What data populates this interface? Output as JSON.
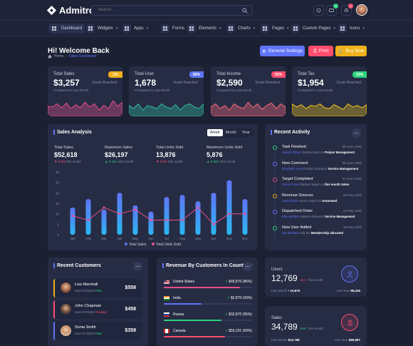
{
  "app": {
    "name": "Admitro"
  },
  "search": {
    "placeholder": "Search..."
  },
  "topbar": {
    "notif_badge": "3",
    "alert_badge": "6"
  },
  "nav": [
    {
      "label": "Dashboard",
      "icon": "dashboard-icon"
    },
    {
      "label": "Widgets",
      "icon": "widgets-icon"
    },
    {
      "label": "Apps",
      "icon": "apps-icon"
    },
    {
      "label": "Forms",
      "icon": "forms-icon"
    },
    {
      "label": "Elements",
      "icon": "elements-icon"
    },
    {
      "label": "Charts",
      "icon": "charts-icon"
    },
    {
      "label": "Pages",
      "icon": "pages-icon"
    },
    {
      "label": "Custom Pages",
      "icon": "custom-pages-icon"
    },
    {
      "label": "Icons",
      "icon": "icons-icon"
    }
  ],
  "page": {
    "title": "Hi! Welcome Back",
    "crumb_home": "Home",
    "crumb_current": "Sales Dashboard"
  },
  "actions": {
    "settings": "General Settings",
    "print": "Print",
    "buy": "Buy Now"
  },
  "stats": [
    {
      "label": "Total Sales",
      "value": "$3,257",
      "compare": "Compared to Last Month",
      "goal": "Goals Reached",
      "pct": "1%",
      "pct_color": "#f0b21a",
      "color": "#e84f8c"
    },
    {
      "label": "Total User",
      "value": "1,678",
      "compare": "Compared to Last Month",
      "goal": "Goals Reached",
      "pct": "85%",
      "pct_color": "#5f74f7",
      "color": "#2fbf9f"
    },
    {
      "label": "Total Income",
      "value": "$2,590",
      "compare": "Compared to Last Month",
      "goal": "Goals Reached",
      "pct": "62%",
      "pct_color": "#ff4d6d",
      "color": "#ff6b7a"
    },
    {
      "label": "Total Tax",
      "value": "$1,954",
      "compare": "Compared to Last Month",
      "goal": "Goals Reached",
      "pct": "53%",
      "pct_color": "#2bd47e",
      "color": "#f0c419"
    }
  ],
  "sales": {
    "title": "Sales Analysis",
    "tabs": [
      "Week",
      "Month",
      "Year"
    ],
    "kpis": [
      {
        "label": "Total Sales",
        "value": "$52,618",
        "change": "0.9%",
        "dir": "down",
        "note": "this month"
      },
      {
        "label": "Maximum Sales",
        "value": "$26,197",
        "change": "0.15%",
        "dir": "up",
        "note": "this month"
      },
      {
        "label": "Total Units Sold",
        "value": "13,876",
        "change": "0.8%",
        "dir": "down",
        "note": "this month"
      },
      {
        "label": "Maximum Units Sold",
        "value": "5,876",
        "change": "0.56%",
        "dir": "up",
        "note": "this month"
      }
    ],
    "legend": [
      "Total Sales",
      "Total Units Sold"
    ]
  },
  "chart_data": {
    "type": "bar",
    "categories": [
      "Jan",
      "Feb",
      "Mar",
      "Apr",
      "May",
      "Jun",
      "Jul",
      "Aug",
      "Sep",
      "Oct",
      "Nov",
      "Dec"
    ],
    "ylim": [
      0,
      30
    ],
    "yticks": [
      0,
      5,
      10,
      15,
      20,
      25,
      30
    ],
    "series": [
      {
        "name": "Total Sales",
        "type": "bar",
        "values": [
          13,
          17,
          12,
          20,
          14,
          11,
          18,
          19,
          16,
          20,
          26,
          17
        ]
      },
      {
        "name": "Total Units Sold",
        "type": "line",
        "values": [
          9,
          7,
          13,
          10,
          12,
          7,
          7,
          7,
          13,
          5,
          10,
          10
        ]
      }
    ]
  },
  "activity": {
    "title": "Recent Activity",
    "items": [
      {
        "title": "Task Finished",
        "date": "09 June 2020",
        "who": "Joseph Ellison",
        "text": " finished task on ",
        "target": "Project Management",
        "color": "#2bd47e"
      },
      {
        "title": "New Comment",
        "date": "05 June 2020",
        "who": "Elizabeth Scott",
        "text": " Product delivered ",
        "target": "Service Management",
        "color": "#5f74f7"
      },
      {
        "title": "Target Completed",
        "date": "01 June 2020",
        "who": "Sonia Peters",
        "text": " finished target on ",
        "target": "this month Sales",
        "color": "#e84f8c"
      },
      {
        "title": "Revenue Sources",
        "date": "26 May 2020",
        "who": "Justin Nash",
        "text": " source report on ",
        "target": "Generated",
        "color": "#f0b21a"
      },
      {
        "title": "Dispatched Order",
        "date": "22 May 2020",
        "who": "Ella Lambert",
        "text": " ordered delivered ",
        "target": "Service Management",
        "color": "#5f74f7"
      },
      {
        "title": "New User Added",
        "date": "19 May 2020",
        "who": "Nicola Blake",
        "text": " visit the ",
        "target": "Membership allocated",
        "color": "#2bd47e"
      }
    ]
  },
  "customers": {
    "title": "Recent Customers",
    "items": [
      {
        "name": "Lisa Marshall",
        "id": "User ID:#2342",
        "status": "Paid",
        "status_color": "#2bd47e",
        "amount": "$558",
        "accent": "#f0b21a"
      },
      {
        "name": "John Chapman",
        "id": "User ID:#2342",
        "status": "Pending",
        "status_color": "#ff4d6d",
        "amount": "$458",
        "accent": "#ff4d6d"
      },
      {
        "name": "Sonia Smith",
        "id": "User ID:#2342",
        "status": "Paid",
        "status_color": "#2bd47e",
        "amount": "$358",
        "accent": "#5f74f7"
      }
    ]
  },
  "countries": {
    "title": "Revenue By Customers In Countries",
    "items": [
      {
        "name": "United States",
        "revenue": "$45,870 (86%)",
        "pct": 86,
        "color": "#e84f8c"
      },
      {
        "name": "India",
        "revenue": "$2,870 (43%)",
        "pct": 43,
        "color": "#5f74f7"
      },
      {
        "name": "Russia",
        "revenue": "$32,870 (65%)",
        "pct": 65,
        "color": "#2bd47e"
      },
      {
        "name": "Canada",
        "revenue": "$56,291 (69%)",
        "pct": 69,
        "color": "#ff4d6d"
      }
    ]
  },
  "users_card": {
    "label": "Users",
    "value": "12,769",
    "change": "45.2",
    "change_note": "this month",
    "last_month_label": "Last Month",
    "last_month": "10,876",
    "last_year_label": "Last Year",
    "last_year": "88,345"
  },
  "sales_card": {
    "label": "Sales",
    "value": "34,789",
    "change": "19.8",
    "change_note": "this month",
    "last_month_label": "Last Month",
    "last_month": "$12,786",
    "last_year_label": "Last Year",
    "last_year": "$89,987"
  }
}
